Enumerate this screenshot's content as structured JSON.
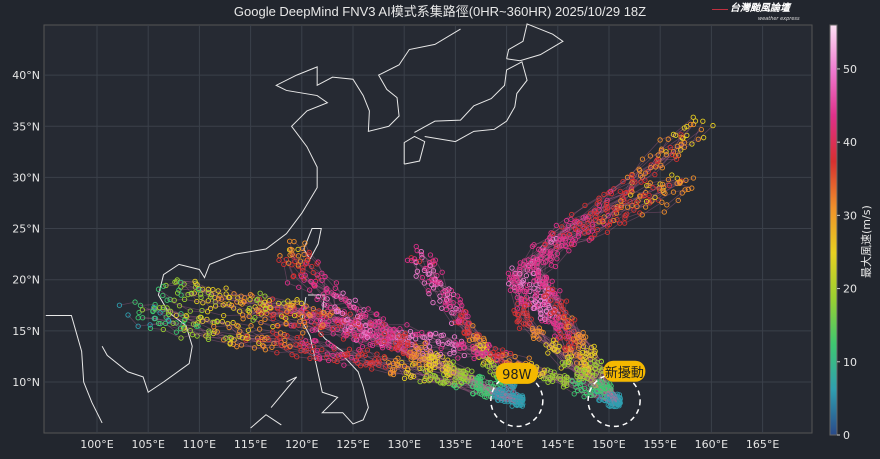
{
  "title": "Google DeepMind FNV3 AI模式系集路徑(0HR~360HR) 2025/10/29 18Z",
  "logo": {
    "text": "台灣颱風論壇",
    "subtext": "weather express"
  },
  "map": {
    "lon_ticks": [
      "100°E",
      "105°E",
      "110°E",
      "115°E",
      "120°E",
      "125°E",
      "130°E",
      "135°E",
      "140°E",
      "145°E",
      "150°E",
      "155°E",
      "160°E",
      "165°E"
    ],
    "lat_ticks": [
      "10°N",
      "15°N",
      "20°N",
      "25°N",
      "30°N",
      "35°N",
      "40°N"
    ],
    "extent": {
      "lon": [
        95,
        170
      ],
      "lat": [
        5.2,
        45
      ]
    },
    "annotations": [
      {
        "label": "98W",
        "lon": 141,
        "lat": 10.8,
        "circle_center": [
          141,
          8.2
        ]
      },
      {
        "label": "新擾動",
        "lon": 151.5,
        "lat": 11.0,
        "circle_center": [
          150.5,
          8.2
        ]
      }
    ],
    "colorbar": {
      "label": "最大風速(m/s)",
      "ticks": [
        "0",
        "10",
        "20",
        "30",
        "40",
        "50"
      ],
      "range": [
        0,
        56
      ],
      "colors": [
        "#2a4a8a",
        "#2f9fb0",
        "#3ec870",
        "#9ad030",
        "#e8d020",
        "#f0902a",
        "#d83030",
        "#e0308a",
        "#f07ad0",
        "#fde0f4"
      ]
    }
  },
  "chart_data": {
    "type": "scatter",
    "description_tracks": [
      {
        "from": "98W",
        "lon": [
          141,
          137,
          132,
          127,
          122,
          117,
          112,
          107,
          103
        ],
        "lat": [
          8.2,
          9.5,
          10.8,
          11.9,
          13,
          14,
          15,
          16,
          17
        ],
        "wind": [
          8,
          15,
          25,
          40,
          45,
          38,
          28,
          18,
          12
        ]
      },
      {
        "from": "98W",
        "lon": [
          141,
          137,
          133,
          129,
          125,
          120,
          115,
          110,
          106
        ],
        "lat": [
          8.2,
          10,
          12,
          13.5,
          15,
          16.5,
          17.5,
          18.5,
          19.5
        ],
        "wind": [
          8,
          18,
          30,
          45,
          50,
          45,
          35,
          25,
          15
        ]
      },
      {
        "from": "98W",
        "lon": [
          141,
          139,
          137,
          135,
          133,
          131
        ],
        "lat": [
          8.2,
          11,
          14,
          17,
          20,
          23
        ],
        "wind": [
          8,
          20,
          35,
          48,
          50,
          45
        ]
      },
      {
        "from": "新擾動",
        "lon": [
          150.5,
          147,
          143,
          139,
          134,
          129,
          124,
          119,
          114
        ],
        "lat": [
          8.2,
          9.5,
          11,
          12.5,
          13.5,
          14.5,
          15.5,
          16.5,
          17.5
        ],
        "wind": [
          8,
          15,
          28,
          42,
          52,
          50,
          42,
          32,
          20
        ]
      },
      {
        "from": "新擾動",
        "lon": [
          150.5,
          148,
          146,
          144,
          143,
          142
        ],
        "lat": [
          8.2,
          11,
          14,
          17,
          19,
          21
        ],
        "wind": [
          10,
          25,
          40,
          50,
          52,
          45
        ]
      },
      {
        "from": "新擾動",
        "lon": [
          150.5,
          146,
          142,
          141,
          145,
          151,
          156,
          160
        ],
        "lat": [
          8.2,
          12,
          16,
          20,
          24,
          28,
          32,
          35.5
        ],
        "wind": [
          10,
          25,
          40,
          50,
          48,
          42,
          36,
          30
        ]
      },
      {
        "from": "新擾動",
        "lon": [
          150.5,
          148,
          145,
          143,
          146,
          150,
          154,
          158
        ],
        "lat": [
          8.2,
          13,
          17,
          21,
          24,
          26,
          28,
          29.5
        ],
        "wind": [
          10,
          28,
          42,
          48,
          45,
          40,
          36,
          32
        ]
      },
      {
        "from": "98W",
        "lon": [
          141,
          136,
          131,
          127,
          123,
          120,
          118
        ],
        "lat": [
          8.2,
          10.5,
          13,
          15.5,
          18,
          21,
          23.5
        ],
        "wind": [
          8,
          20,
          35,
          48,
          50,
          42,
          30
        ]
      }
    ]
  }
}
